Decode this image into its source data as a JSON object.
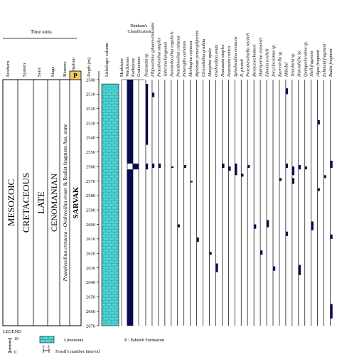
{
  "header": {
    "time_units": "Time units",
    "erathem": "Erathem",
    "system": "System",
    "serie": "Serie",
    "stage": "Stage",
    "biozone": "Biozone",
    "formation": "Formation",
    "depth": "Depth (m)",
    "lithologic": "Lithologic column",
    "dunham_title": "Dunham's Classification",
    "dunham": [
      "Mudstone",
      "Wackstone",
      "Packstone",
      "Grainstone"
    ]
  },
  "strat": {
    "erathem": "MESOZOIC",
    "system": "CRETACEOUS",
    "serie": "LATE",
    "stage": "CENOMANIAN",
    "biozone_italic": "Praealveolina cretacea - Ovalveolina ovum",
    "biozone_rest": "& Rudist fragment Ass. zone",
    "formation_p": "P",
    "formation": "SARVAK"
  },
  "depth_ticks": [
    "2500",
    "2510",
    "2520",
    "2530",
    "2540",
    "2550",
    "2560",
    "2570",
    "2580",
    "2590",
    "2600",
    "2610",
    "2620",
    "2630",
    "2640",
    "2650",
    "2660",
    "2670"
  ],
  "fossils": [
    "Nezzazata sp.",
    "Ellipsactinia sphaerectinioides",
    "Praealveolina simplex",
    "Taberina bangeonsi",
    "Nummoloculina regularis",
    "Praealveolina cretacea",
    "Peneroplis cairensis",
    "Merlingina cretacea",
    "Biplanata peneropliformis",
    "Chrysalidina gradata",
    "Murgeina apula",
    "Ovalveolina ovum",
    "Nezzazata simplex",
    "Nezzazata conica",
    "Spiroloculina cretacea",
    "N. picardi",
    "Praealveolinella reicheli",
    "Biconcava bentori",
    "Multispirina iranensis",
    "Edomia reicheli",
    "Dicyclocosmus sp.",
    "Karreriella sp.",
    "Miliolid",
    "Textularia sp.",
    "Heterohelix sp.",
    "Quinqueloculina sp.",
    "Shell fragment",
    "Algae fragment",
    "Echinoid fragment",
    "Rudist fragment"
  ],
  "legend": {
    "title": "LEGEND",
    "limestone": "Limestone",
    "pabdeh": "P : Pabdeh Formation",
    "fossil_interval": "Fossil's number interval",
    "scale_top": "10",
    "scale_bottom": "0"
  },
  "colors": {
    "limestone": "#4fd5d5",
    "bar": "#0a0a4d"
  },
  "chart_data": {
    "type": "range_chart",
    "depth_axis": {
      "label": "Depth (m)",
      "range": [
        2500,
        2670
      ],
      "step": 10
    },
    "dunham_profile": [
      {
        "from": 2500,
        "to": 2558,
        "texture": "Wackstone"
      },
      {
        "from": 2558,
        "to": 2562,
        "texture": "Packstone"
      },
      {
        "from": 2562,
        "to": 2670,
        "texture": "Wackstone"
      }
    ],
    "occurrences": [
      {
        "fossil": "Nezzazata sp.",
        "ranges": [
          [
            2503,
            2545
          ],
          [
            2558,
            2562
          ]
        ]
      },
      {
        "fossil": "Ellipsactinia sphaerectinioides",
        "ranges": [
          [
            2509,
            2512
          ],
          [
            2558,
            2561
          ]
        ]
      },
      {
        "fossil": "Praealveolina simplex",
        "ranges": [
          [
            2558,
            2561
          ]
        ]
      },
      {
        "fossil": "Taberina bangeonsi",
        "ranges": []
      },
      {
        "fossil": "Nummoloculina regularis",
        "ranges": [
          [
            2560,
            2561
          ]
        ]
      },
      {
        "fossil": "Praealveolina cretacea",
        "ranges": [
          [
            2600,
            2602
          ]
        ]
      },
      {
        "fossil": "Peneroplis cairensis",
        "ranges": [
          [
            2559,
            2561
          ]
        ]
      },
      {
        "fossil": "Merlingina cretacea",
        "ranges": [
          [
            2570,
            2571
          ]
        ]
      },
      {
        "fossil": "Biplanata peneropliformis",
        "ranges": [
          [
            2609,
            2612
          ]
        ]
      },
      {
        "fossil": "Chrysalidina gradata",
        "ranges": []
      },
      {
        "fossil": "Murgeina apula",
        "ranges": [
          [
            2619,
            2621
          ]
        ]
      },
      {
        "fossil": "Ovalveolina ovum",
        "ranges": [
          [
            2627,
            2633
          ]
        ]
      },
      {
        "fossil": "Nezzazata simplex",
        "ranges": [
          [
            2558,
            2561
          ]
        ]
      },
      {
        "fossil": "Nezzazata conica",
        "ranges": [
          [
            2560,
            2563
          ]
        ]
      },
      {
        "fossil": "Spiroloculina cretacea",
        "ranges": [
          [
            2558,
            2566
          ]
        ]
      },
      {
        "fossil": "N. picardi",
        "ranges": [
          [
            2565,
            2567
          ]
        ]
      },
      {
        "fossil": "Praealveolinella reicheli",
        "ranges": [
          [
            2559,
            2561
          ]
        ]
      },
      {
        "fossil": "Biconcava bentori",
        "ranges": [
          [
            2600,
            2603
          ]
        ]
      },
      {
        "fossil": "Multispirina iranensis",
        "ranges": [
          [
            2618,
            2621
          ]
        ]
      },
      {
        "fossil": "Edomia reicheli",
        "ranges": [
          [
            2597,
            2602
          ]
        ]
      },
      {
        "fossil": "Dicyclocosmus sp.",
        "ranges": [
          [
            2629,
            2632
          ]
        ]
      },
      {
        "fossil": "Karreriella sp.",
        "ranges": [
          [
            2568,
            2570
          ]
        ]
      },
      {
        "fossil": "Miliolid",
        "ranges": [
          [
            2506,
            2510
          ],
          [
            2558,
            2561
          ],
          [
            2605,
            2608
          ]
        ]
      },
      {
        "fossil": "Textularia sp.",
        "ranges": [
          [
            2560,
            2566
          ],
          [
            2568,
            2572
          ]
        ]
      },
      {
        "fossil": "Heterohelix sp.",
        "ranges": [
          [
            2559,
            2562
          ],
          [
            2628,
            2635
          ]
        ]
      },
      {
        "fossil": "Quinqueloculina sp.",
        "ranges": [
          [
            2560,
            2562
          ]
        ]
      },
      {
        "fossil": "Shell fragment",
        "ranges": [
          [
            2598,
            2604
          ]
        ]
      },
      {
        "fossil": "Algae fragment",
        "ranges": [
          [
            2528,
            2531
          ],
          [
            2575,
            2577
          ]
        ]
      },
      {
        "fossil": "Echinoid fragment",
        "ranges": [
          [
            2566,
            2568
          ]
        ]
      },
      {
        "fossil": "Rudist fragment",
        "ranges": [
          [
            2556,
            2561
          ],
          [
            2607,
            2610
          ],
          [
            2655,
            2665
          ]
        ]
      }
    ]
  }
}
